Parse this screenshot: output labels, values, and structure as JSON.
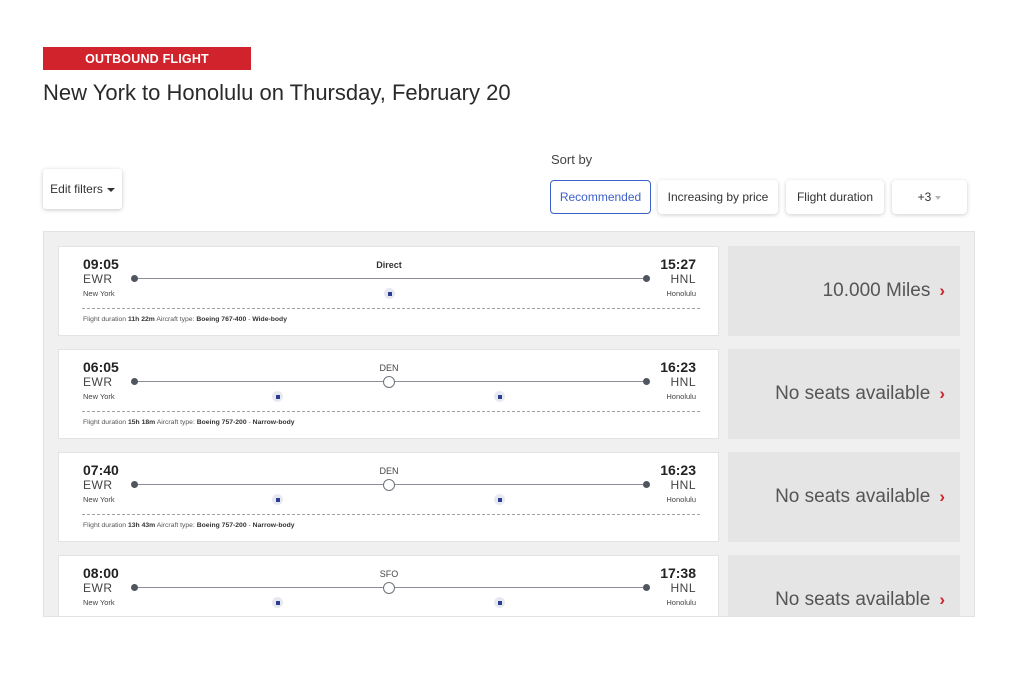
{
  "header": {
    "badge": "OUTBOUND FLIGHT",
    "title": "New York to Honolulu on Thursday, February 20"
  },
  "filters": {
    "edit_label": "Edit filters"
  },
  "sort": {
    "label": "Sort by",
    "options": [
      "Recommended",
      "Increasing by price",
      "Flight duration"
    ],
    "more": "+3",
    "active": "Recommended"
  },
  "labels": {
    "flight_duration": "Flight duration",
    "aircraft_type": "Aircraft type:",
    "separator": "-"
  },
  "colors": {
    "brand_red": "#d0232b",
    "active_blue": "#3d5fc9",
    "price_bg": "#e5e5e5"
  },
  "flights": [
    {
      "dep_time": "09:05",
      "dep_code": "EWR",
      "dep_city": "New York",
      "arr_time": "15:27",
      "arr_code": "HNL",
      "arr_city": "Honolulu",
      "route_label": "Direct",
      "duration": "11h 22m",
      "aircraft": "Boeing 767-400",
      "body": "Wide-body",
      "price": "10.000 Miles"
    },
    {
      "dep_time": "06:05",
      "dep_code": "EWR",
      "dep_city": "New York",
      "arr_time": "16:23",
      "arr_code": "HNL",
      "arr_city": "Honolulu",
      "route_label": "DEN",
      "duration": "15h 18m",
      "aircraft": "Boeing 757-200",
      "body": "Narrow-body",
      "price": "No seats available"
    },
    {
      "dep_time": "07:40",
      "dep_code": "EWR",
      "dep_city": "New York",
      "arr_time": "16:23",
      "arr_code": "HNL",
      "arr_city": "Honolulu",
      "route_label": "DEN",
      "duration": "13h 43m",
      "aircraft": "Boeing 757-200",
      "body": "Narrow-body",
      "price": "No seats available"
    },
    {
      "dep_time": "08:00",
      "dep_code": "EWR",
      "dep_city": "New York",
      "arr_time": "17:38",
      "arr_code": "HNL",
      "arr_city": "Honolulu",
      "route_label": "SFO",
      "price": "No seats available"
    }
  ]
}
